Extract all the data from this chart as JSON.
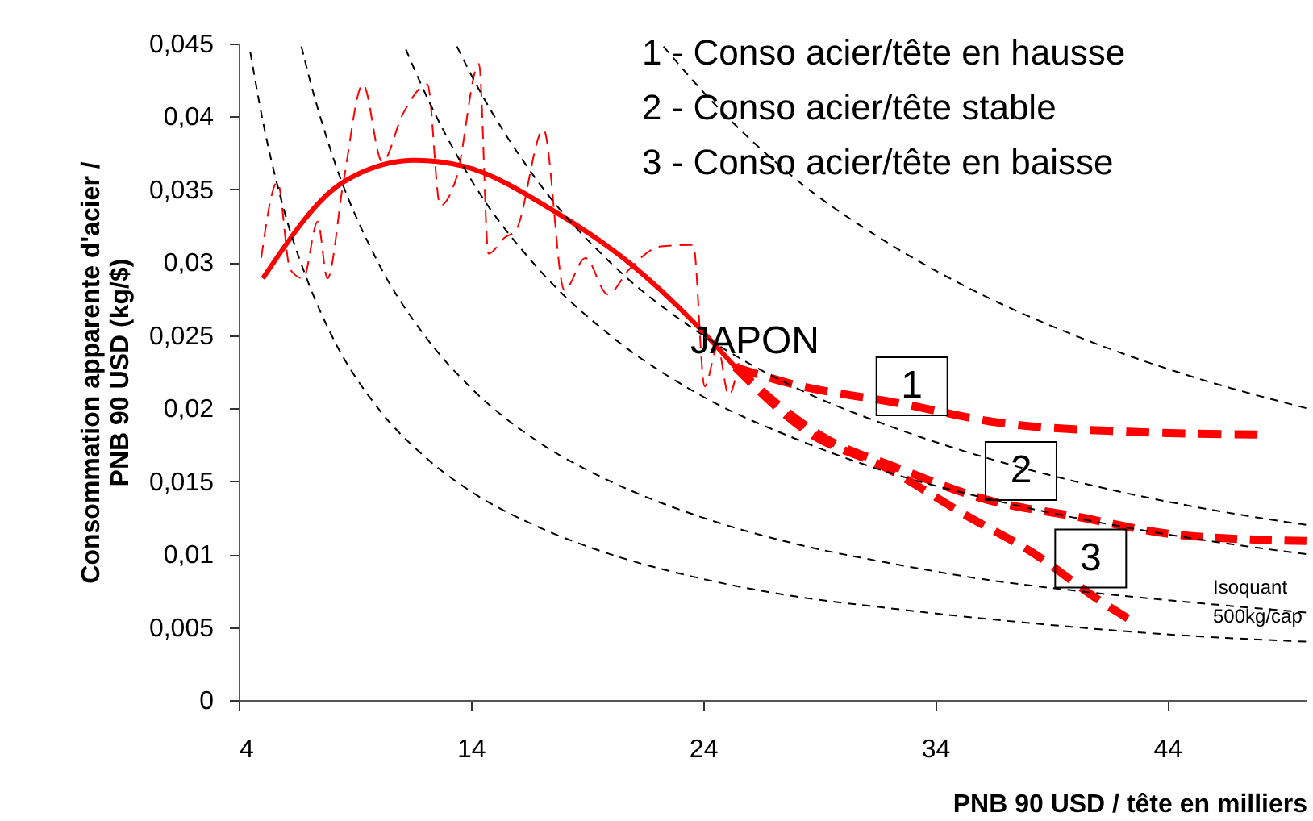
{
  "chart_data": {
    "type": "line",
    "xlabel": "PNB 90 USD / tête en milliers",
    "ylabel": "Consommation apparente d'acier / PNB 90 USD (kg/$)",
    "xlim": [
      4,
      50
    ],
    "ylim": [
      0,
      0.045
    ],
    "xticks": [
      4,
      14,
      24,
      34,
      44
    ],
    "yticks": [
      {
        "value": 0,
        "label": "0"
      },
      {
        "value": 0.005,
        "label": "0,005"
      },
      {
        "value": 0.01,
        "label": "0,01"
      },
      {
        "value": 0.015,
        "label": "0,015"
      },
      {
        "value": 0.02,
        "label": "0,02"
      },
      {
        "value": 0.025,
        "label": "0,025"
      },
      {
        "value": 0.03,
        "label": "0,03"
      },
      {
        "value": 0.035,
        "label": "0,035"
      },
      {
        "value": 0.04,
        "label": "0,04"
      },
      {
        "value": 0.045,
        "label": "0,045"
      }
    ],
    "grid": false,
    "marker": "none",
    "series": [
      {
        "color": "#ff0000",
        "line_style": "solid",
        "x": [
          5.04,
          8.5,
          11.6,
          13.65,
          17.8,
          20.8,
          23.6,
          25.4
        ],
        "values": [
          0.0289,
          0.0355,
          0.037,
          0.0366,
          0.0333,
          0.03,
          0.0259,
          0.0228
        ]
      },
      {
        "color": "#ff0000",
        "line_style": "dashed",
        "x": [
          4.97,
          5.67,
          6.22,
          6.78,
          7.4,
          7.82,
          8.51,
          9.35,
          10.18,
          11.08,
          12.13,
          12.68,
          13.38,
          14.35,
          14.76,
          15.46,
          15.94,
          17.13,
          18.03,
          18.93,
          19.9,
          20.81,
          22.19,
          23.58,
          24.07,
          24.63,
          25.11,
          25.53
        ],
        "values": [
          0.0303,
          0.0355,
          0.0295,
          0.0289,
          0.0328,
          0.0289,
          0.0355,
          0.0422,
          0.0369,
          0.0402,
          0.0422,
          0.0339,
          0.0358,
          0.0436,
          0.0306,
          0.0317,
          0.0322,
          0.0391,
          0.0281,
          0.0303,
          0.0278,
          0.0295,
          0.0311,
          0.0312,
          0.0215,
          0.0242,
          0.0209,
          0.0231
        ]
      },
      {
        "color": "#ff0000",
        "line_style": "dashed",
        "x": [
          25.4,
          27.75,
          32.6,
          36.8,
          42.3,
          47.9
        ],
        "values": [
          0.0228,
          0.0217,
          0.0203,
          0.019,
          0.0184,
          0.0182
        ]
      },
      {
        "color": "#ff0000",
        "line_style": "dashed",
        "x": [
          25.4,
          29.1,
          32.4,
          36.3,
          40,
          44.6,
          50
        ],
        "values": [
          0.0228,
          0.0181,
          0.0159,
          0.0137,
          0.0126,
          0.0113,
          0.0109
        ]
      },
      {
        "color": "#ff0000",
        "line_style": "dashed",
        "x": [
          25.4,
          28.4,
          31.9,
          35.4,
          38.2,
          41.2,
          42.3
        ],
        "values": [
          0.0228,
          0.0185,
          0.0159,
          0.0126,
          0.0101,
          0.0067,
          0.0056
        ]
      },
      {
        "color": "#000000",
        "line_style": "dashed",
        "x": [
          4.5,
          5,
          6,
          7,
          8,
          10,
          12,
          14,
          17,
          20,
          24,
          28,
          32,
          36,
          40,
          45,
          50
        ],
        "values": [
          0.0444,
          0.04,
          0.0333,
          0.0286,
          0.025,
          0.02,
          0.0167,
          0.0143,
          0.0118,
          0.01,
          0.0083,
          0.0071,
          0.0063,
          0.0056,
          0.005,
          0.0044,
          0.004
        ]
      },
      {
        "color": "#000000",
        "line_style": "dashed",
        "x": [
          6.7,
          7,
          8,
          10,
          12,
          14,
          17,
          20,
          24,
          28,
          32,
          36,
          40,
          45,
          50
        ],
        "values": [
          0.0448,
          0.0429,
          0.0375,
          0.03,
          0.025,
          0.0214,
          0.0176,
          0.015,
          0.0125,
          0.0107,
          0.0094,
          0.0083,
          0.0075,
          0.0067,
          0.006
        ]
      },
      {
        "color": "#000000",
        "line_style": "dashed",
        "x": [
          11.2,
          12,
          14,
          17,
          20,
          24,
          28,
          32,
          36,
          40,
          45,
          50
        ],
        "values": [
          0.0446,
          0.0417,
          0.0357,
          0.0294,
          0.025,
          0.0208,
          0.0179,
          0.0156,
          0.0139,
          0.0125,
          0.0111,
          0.01
        ]
      },
      {
        "color": "#000000",
        "line_style": "dashed",
        "x": [
          13.4,
          14,
          17,
          20,
          24,
          28,
          32,
          36,
          40,
          45,
          50
        ],
        "values": [
          0.0448,
          0.0429,
          0.0353,
          0.03,
          0.025,
          0.0214,
          0.0188,
          0.0167,
          0.015,
          0.0133,
          0.012
        ]
      },
      {
        "color": "#000000",
        "line_style": "dashed",
        "x": [
          22.3,
          24,
          28,
          32,
          36,
          40,
          45,
          50
        ],
        "values": [
          0.0448,
          0.0417,
          0.0357,
          0.0313,
          0.0278,
          0.025,
          0.0222,
          0.02
        ]
      }
    ],
    "annotations": [
      "1 - Conso acier/tête en hausse",
      "2 - Conso acier/tête stable",
      "3 - Conso acier/tête en baisse",
      "JAPON",
      {
        "text": "1",
        "x": 33,
        "y": 0.0215
      },
      {
        "text": "2",
        "x": 37.7,
        "y": 0.0157
      },
      {
        "text": "3",
        "x": 40.7,
        "y": 0.0097
      },
      "Isoquant\n500kg/cap"
    ]
  }
}
